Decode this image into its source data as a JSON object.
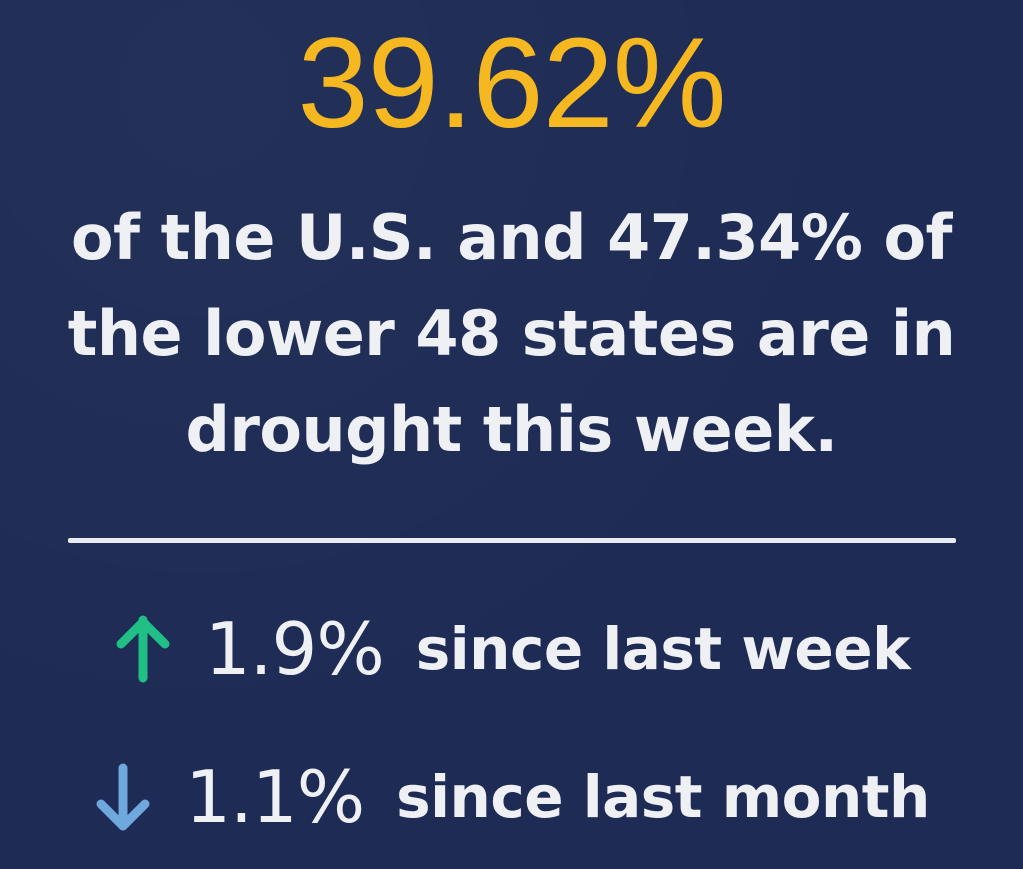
{
  "headline": {
    "percent": "39.62%",
    "color": "#f6b820"
  },
  "description": {
    "line1": "of the U.S. and 47.34% of",
    "line2": "the lower 48 states are in",
    "line3": "drought this week."
  },
  "changes": {
    "week": {
      "direction": "up",
      "icon": "arrow-up-icon",
      "icon_color": "#1fbf86",
      "value": "1.9%",
      "label": "since last week"
    },
    "month": {
      "direction": "down",
      "icon": "arrow-down-icon",
      "icon_color": "#6fa8dc",
      "value": "1.1%",
      "label": "since last month"
    }
  },
  "colors": {
    "background": "#1e2c55",
    "text": "#eef0f4"
  }
}
